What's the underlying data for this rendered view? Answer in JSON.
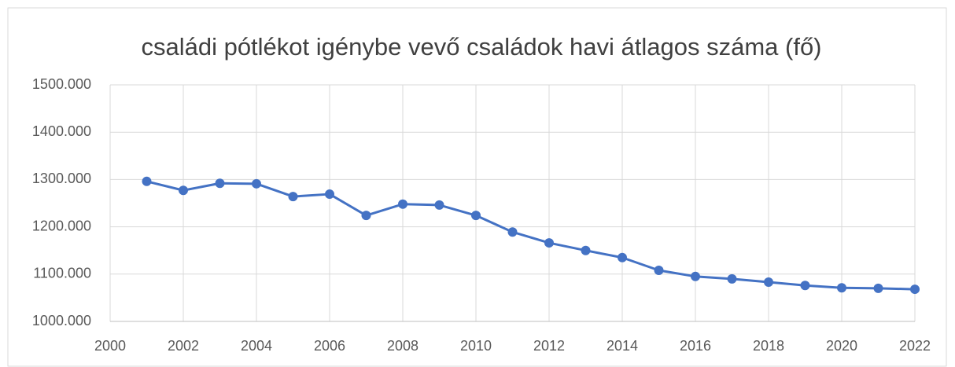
{
  "chart_data": {
    "type": "line",
    "title": "családi pótlékot igénybe vevő családok havi átlagos száma (fő)",
    "x": [
      2001,
      2002,
      2003,
      2004,
      2005,
      2006,
      2007,
      2008,
      2009,
      2010,
      2011,
      2012,
      2013,
      2014,
      2015,
      2016,
      2017,
      2018,
      2019,
      2020,
      2021,
      2022
    ],
    "series": [
      {
        "name": null,
        "color": "#4472c4",
        "values": [
          1296000,
          1277000,
          1292000,
          1291000,
          1264000,
          1269000,
          1224000,
          1248000,
          1246000,
          1224000,
          1189000,
          1166000,
          1150000,
          1135000,
          1108000,
          1095000,
          1090000,
          1083000,
          1076000,
          1071000,
          1070000,
          1068000
        ]
      }
    ],
    "xlim": [
      2000,
      2022
    ],
    "xticks": [
      2000,
      2002,
      2004,
      2006,
      2008,
      2010,
      2012,
      2014,
      2016,
      2018,
      2020,
      2022
    ],
    "ylim": [
      1000000,
      1500000
    ],
    "yticks": [
      {
        "value": 1000000,
        "label": "1000.000"
      },
      {
        "value": 1100000,
        "label": "1100.000"
      },
      {
        "value": 1200000,
        "label": "1200.000"
      },
      {
        "value": 1300000,
        "label": "1300.000"
      },
      {
        "value": 1400000,
        "label": "1400.000"
      },
      {
        "value": 1500000,
        "label": "1500.000"
      }
    ],
    "grid": true
  }
}
